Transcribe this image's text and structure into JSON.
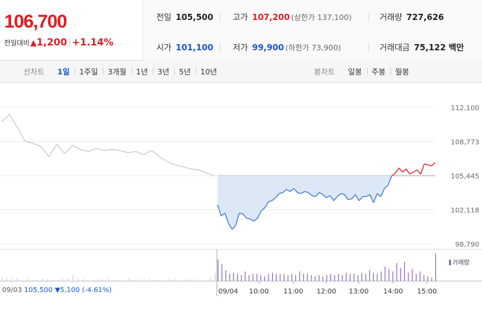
{
  "summary": {
    "price": "106,700",
    "change_label": "전일대비",
    "change_arrow": "▲",
    "change": "1,200",
    "change_pct": "+1.14%"
  },
  "stats": {
    "prev_close_label": "전일",
    "prev_close": "105,500",
    "high_label": "고가",
    "high": "107,200",
    "upper_limit": "(상한가 137,100)",
    "volume_label": "거래량",
    "volume": "727,626",
    "open_label": "시가",
    "open": "101,100",
    "low_label": "저가",
    "low": "99,900",
    "lower_limit": "(하한가 73,900)",
    "value_label": "거래대금",
    "value": "75,122 백만"
  },
  "line_tabs": {
    "label": "선차트",
    "items": [
      "1일",
      "1주일",
      "3개월",
      "1년",
      "3년",
      "5년",
      "10년"
    ],
    "active": "1일"
  },
  "candle_tabs": {
    "label": "봉차트",
    "items": [
      "일봉",
      "주봉",
      "월봉"
    ]
  },
  "volume_legend": "거래량",
  "prev_day_note": {
    "date": "09/03",
    "close": "105,500",
    "arrow": "▼",
    "change": "5,100",
    "pct": "(-4.61%)"
  },
  "colors": {
    "up": "#e01b22",
    "down": "#1a55c9",
    "prev_line": "#c8c8c8",
    "today_line": "#3b7ad6",
    "fill": "#dde8f7",
    "volume": "#8b6dbb"
  },
  "chart_data": {
    "type": "line",
    "title": "",
    "xlabel": "",
    "ylabel": "",
    "y_ticks": [
      "112,100",
      "108,773",
      "105,445",
      "102,118",
      "98,790"
    ],
    "y_tick_values": [
      112100,
      108773,
      105445,
      102118,
      98790
    ],
    "ylim": [
      98790,
      112100
    ],
    "x_ticks": [
      "09/03",
      "09/04",
      "10:00",
      "11:00",
      "12:00",
      "13:00",
      "14:00",
      "15:00"
    ],
    "reference_line": 105445,
    "series": [
      {
        "day": "09/03",
        "values": [
          110700,
          111400,
          110200,
          108800,
          108600,
          108300,
          107300,
          108500,
          107600,
          108400,
          108000,
          107800,
          108100,
          107900,
          108000,
          107900,
          107700,
          107800,
          107500,
          107900,
          107300,
          106800,
          106500,
          106300,
          106100,
          106000,
          105700,
          105400
        ]
      },
      {
        "day": "09/04",
        "x": [
          "09:00",
          "09:05",
          "09:10",
          "09:15",
          "09:20",
          "09:25",
          "09:30",
          "09:35",
          "09:40",
          "09:45",
          "09:50",
          "09:55",
          "10:00",
          "10:05",
          "10:10",
          "10:15",
          "10:20",
          "10:25",
          "10:30",
          "10:35",
          "10:40",
          "10:45",
          "10:50",
          "10:55",
          "11:00",
          "11:10",
          "11:20",
          "11:30",
          "11:40",
          "11:50",
          "12:00",
          "12:10",
          "12:20",
          "12:30",
          "12:40",
          "12:50",
          "13:00",
          "13:10",
          "13:20",
          "13:30",
          "13:40",
          "13:50",
          "14:00",
          "14:05",
          "14:10",
          "14:15",
          "14:20",
          "14:25",
          "14:30",
          "14:35",
          "14:40",
          "14:45",
          "14:50",
          "14:55",
          "15:00",
          "15:05",
          "15:10",
          "15:15",
          "15:20",
          "15:25",
          "15:30"
        ],
        "values": [
          102600,
          101500,
          101800,
          100800,
          100200,
          100600,
          101800,
          101700,
          101300,
          101200,
          101000,
          101300,
          102000,
          102300,
          102900,
          103000,
          103300,
          103700,
          103800,
          104100,
          103900,
          104200,
          103800,
          103700,
          103900,
          103800,
          103500,
          103400,
          103800,
          103600,
          103300,
          103500,
          103000,
          103400,
          103700,
          103600,
          103100,
          103200,
          103600,
          103000,
          103400,
          103400,
          103600,
          102800,
          103700,
          103400,
          104200,
          104500,
          105400,
          105700,
          106200,
          105800,
          106100,
          105600,
          105800,
          106000,
          105600,
          106600,
          106500,
          106400,
          106700
        ]
      }
    ],
    "volume": [
      3,
      2,
      2,
      2,
      1,
      2,
      1,
      1,
      2,
      2,
      1,
      1,
      2,
      3,
      5,
      2,
      2,
      1,
      1,
      2,
      1,
      2,
      1,
      1,
      1,
      2,
      1,
      2,
      1,
      2,
      1,
      1,
      1,
      2,
      2,
      1,
      1,
      2,
      2,
      1,
      1,
      3,
      7,
      18,
      14,
      9,
      6,
      7,
      6,
      5,
      8,
      5,
      6,
      6,
      5,
      4,
      6,
      7,
      6,
      6,
      6,
      5,
      6,
      5,
      8,
      6,
      6,
      5,
      4,
      5,
      4,
      5,
      6,
      5,
      6,
      5,
      7,
      6,
      6,
      5,
      7,
      6,
      9,
      7,
      6,
      8,
      12,
      10,
      8,
      15,
      11,
      16,
      7,
      10,
      6,
      8,
      5,
      4,
      3,
      23
    ]
  }
}
